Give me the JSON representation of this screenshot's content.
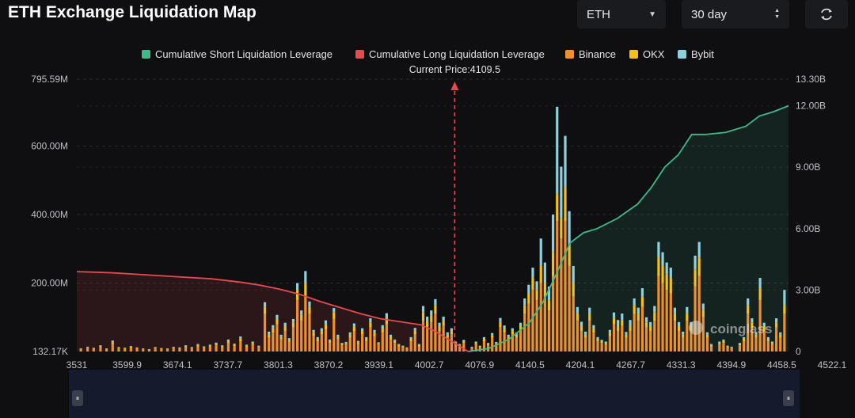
{
  "title": "ETH Exchange Liquidation Map",
  "controls": {
    "asset": "ETH",
    "range": "30 day"
  },
  "colors": {
    "short": "#3fb98a",
    "long": "#e54a4f",
    "binance": "#f0902a",
    "okx": "#f2c21b",
    "bybit": "#8fd0dc",
    "background": "#0f0f12"
  },
  "chart_data": {
    "type": "bar",
    "title": "ETH Exchange Liquidation Map",
    "current_price_label": "Current Price:4109.5",
    "current_price": 4109.5,
    "x_ticks": [
      "3531",
      "3599.9",
      "3674.1",
      "3737.7",
      "3801.3",
      "3870.2",
      "3939.1",
      "4002.7",
      "4076.9",
      "4140.5",
      "4204.1",
      "4267.7",
      "4331.3",
      "4394.9",
      "4458.5",
      "4522.1"
    ],
    "x_range": [
      3531,
      4583
    ],
    "y_left_ticks": [
      "795.59M",
      "600.00M",
      "400.00M",
      "200.00M",
      "132.17K"
    ],
    "y_left_range": [
      0,
      795.59
    ],
    "y_left_unit": "M",
    "y_right_ticks": [
      "13.30B",
      "12.00B",
      "9.00B",
      "6.00B",
      "3.00B",
      "0"
    ],
    "y_right_range": [
      0,
      13.3
    ],
    "y_right_unit": "B",
    "legend": [
      "Cumulative Short Liquidation Leverage",
      "Cumulative Long Liquidation Leverage",
      "Binance",
      "OKX",
      "Bybit"
    ],
    "legend_position": "top-center",
    "watermark": "coinglass",
    "series_bars": [
      {
        "name": "Binance",
        "color_key": "binance"
      },
      {
        "name": "OKX",
        "color_key": "okx"
      },
      {
        "name": "Bybit",
        "color_key": "bybit"
      }
    ],
    "bars": [
      {
        "x": 3537,
        "b": 6,
        "o": 2,
        "y": 1
      },
      {
        "x": 3547,
        "b": 10,
        "o": 2,
        "y": 2
      },
      {
        "x": 3556,
        "b": 8,
        "o": 2,
        "y": 1
      },
      {
        "x": 3566,
        "b": 12,
        "o": 3,
        "y": 3
      },
      {
        "x": 3575,
        "b": 6,
        "o": 2,
        "y": 1
      },
      {
        "x": 3584,
        "b": 22,
        "o": 5,
        "y": 5
      },
      {
        "x": 3593,
        "b": 9,
        "o": 2,
        "y": 2
      },
      {
        "x": 3602,
        "b": 7,
        "o": 2,
        "y": 2
      },
      {
        "x": 3611,
        "b": 11,
        "o": 3,
        "y": 2
      },
      {
        "x": 3620,
        "b": 8,
        "o": 2,
        "y": 2
      },
      {
        "x": 3629,
        "b": 6,
        "o": 2,
        "y": 1
      },
      {
        "x": 3638,
        "b": 5,
        "o": 1,
        "y": 1
      },
      {
        "x": 3647,
        "b": 9,
        "o": 2,
        "y": 2
      },
      {
        "x": 3656,
        "b": 7,
        "o": 2,
        "y": 1
      },
      {
        "x": 3665,
        "b": 6,
        "o": 2,
        "y": 1
      },
      {
        "x": 3674,
        "b": 10,
        "o": 2,
        "y": 2
      },
      {
        "x": 3683,
        "b": 8,
        "o": 2,
        "y": 2
      },
      {
        "x": 3692,
        "b": 12,
        "o": 3,
        "y": 3
      },
      {
        "x": 3701,
        "b": 9,
        "o": 2,
        "y": 2
      },
      {
        "x": 3710,
        "b": 15,
        "o": 4,
        "y": 3
      },
      {
        "x": 3719,
        "b": 10,
        "o": 3,
        "y": 2
      },
      {
        "x": 3728,
        "b": 14,
        "o": 3,
        "y": 3
      },
      {
        "x": 3737,
        "b": 18,
        "o": 4,
        "y": 4
      },
      {
        "x": 3746,
        "b": 12,
        "o": 3,
        "y": 3
      },
      {
        "x": 3755,
        "b": 24,
        "o": 6,
        "y": 5
      },
      {
        "x": 3764,
        "b": 16,
        "o": 4,
        "y": 3
      },
      {
        "x": 3773,
        "b": 30,
        "o": 8,
        "y": 6
      },
      {
        "x": 3782,
        "b": 14,
        "o": 3,
        "y": 3
      },
      {
        "x": 3791,
        "b": 20,
        "o": 5,
        "y": 4
      },
      {
        "x": 3800,
        "b": 12,
        "o": 3,
        "y": 2
      },
      {
        "x": 3809,
        "b": 110,
        "o": 20,
        "y": 14
      },
      {
        "x": 3815,
        "b": 40,
        "o": 10,
        "y": 8
      },
      {
        "x": 3821,
        "b": 55,
        "o": 12,
        "y": 10
      },
      {
        "x": 3827,
        "b": 80,
        "o": 15,
        "y": 12
      },
      {
        "x": 3833,
        "b": 35,
        "o": 8,
        "y": 6
      },
      {
        "x": 3839,
        "b": 60,
        "o": 14,
        "y": 10
      },
      {
        "x": 3845,
        "b": 28,
        "o": 6,
        "y": 5
      },
      {
        "x": 3851,
        "b": 70,
        "o": 15,
        "y": 10
      },
      {
        "x": 3857,
        "b": 150,
        "o": 30,
        "y": 20
      },
      {
        "x": 3863,
        "b": 90,
        "o": 18,
        "y": 12
      },
      {
        "x": 3869,
        "b": 160,
        "o": 40,
        "y": 35
      },
      {
        "x": 3875,
        "b": 110,
        "o": 20,
        "y": 16
      },
      {
        "x": 3881,
        "b": 45,
        "o": 10,
        "y": 8
      },
      {
        "x": 3887,
        "b": 30,
        "o": 7,
        "y": 5
      },
      {
        "x": 3893,
        "b": 50,
        "o": 10,
        "y": 8
      },
      {
        "x": 3899,
        "b": 65,
        "o": 14,
        "y": 12
      },
      {
        "x": 3905,
        "b": 25,
        "o": 6,
        "y": 4
      },
      {
        "x": 3911,
        "b": 95,
        "o": 20,
        "y": 12
      },
      {
        "x": 3917,
        "b": 35,
        "o": 8,
        "y": 6
      },
      {
        "x": 3923,
        "b": 18,
        "o": 4,
        "y": 3
      },
      {
        "x": 3929,
        "b": 20,
        "o": 5,
        "y": 3
      },
      {
        "x": 3935,
        "b": 40,
        "o": 9,
        "y": 7
      },
      {
        "x": 3941,
        "b": 60,
        "o": 12,
        "y": 10
      },
      {
        "x": 3947,
        "b": 22,
        "o": 5,
        "y": 4
      },
      {
        "x": 3953,
        "b": 50,
        "o": 10,
        "y": 8
      },
      {
        "x": 3959,
        "b": 30,
        "o": 7,
        "y": 5
      },
      {
        "x": 3965,
        "b": 70,
        "o": 15,
        "y": 12
      },
      {
        "x": 3971,
        "b": 45,
        "o": 10,
        "y": 8
      },
      {
        "x": 3977,
        "b": 20,
        "o": 4,
        "y": 3
      },
      {
        "x": 3983,
        "b": 55,
        "o": 12,
        "y": 10
      },
      {
        "x": 3989,
        "b": 80,
        "o": 18,
        "y": 14
      },
      {
        "x": 3995,
        "b": 35,
        "o": 8,
        "y": 6
      },
      {
        "x": 4001,
        "b": 25,
        "o": 6,
        "y": 4
      },
      {
        "x": 4007,
        "b": 15,
        "o": 4,
        "y": 3
      },
      {
        "x": 4013,
        "b": 12,
        "o": 3,
        "y": 2
      },
      {
        "x": 4019,
        "b": 8,
        "o": 2,
        "y": 2
      },
      {
        "x": 4025,
        "b": 30,
        "o": 7,
        "y": 5
      },
      {
        "x": 4031,
        "b": 50,
        "o": 11,
        "y": 8
      },
      {
        "x": 4037,
        "b": 15,
        "o": 4,
        "y": 3
      },
      {
        "x": 4043,
        "b": 90,
        "o": 25,
        "y": 18
      },
      {
        "x": 4049,
        "b": 70,
        "o": 18,
        "y": 14
      },
      {
        "x": 4055,
        "b": 85,
        "o": 20,
        "y": 15
      },
      {
        "x": 4061,
        "b": 110,
        "o": 25,
        "y": 18
      },
      {
        "x": 4067,
        "b": 60,
        "o": 14,
        "y": 10
      },
      {
        "x": 4073,
        "b": 75,
        "o": 15,
        "y": 12
      },
      {
        "x": 4079,
        "b": 40,
        "o": 9,
        "y": 7
      },
      {
        "x": 4085,
        "b": 50,
        "o": 10,
        "y": 8
      },
      {
        "x": 4091,
        "b": 20,
        "o": 5,
        "y": 4
      },
      {
        "x": 4097,
        "b": 15,
        "o": 4,
        "y": 3
      },
      {
        "x": 4103,
        "b": 25,
        "o": 5,
        "y": 4
      },
      {
        "x": 4115,
        "b": 10,
        "o": 2,
        "y": 2
      },
      {
        "x": 4121,
        "b": 20,
        "o": 5,
        "y": 4
      },
      {
        "x": 4127,
        "b": 12,
        "o": 3,
        "y": 2
      },
      {
        "x": 4133,
        "b": 30,
        "o": 7,
        "y": 5
      },
      {
        "x": 4139,
        "b": 18,
        "o": 4,
        "y": 3
      },
      {
        "x": 4145,
        "b": 40,
        "o": 8,
        "y": 6
      },
      {
        "x": 4151,
        "b": 20,
        "o": 5,
        "y": 3
      },
      {
        "x": 4157,
        "b": 70,
        "o": 16,
        "y": 12
      },
      {
        "x": 4163,
        "b": 55,
        "o": 12,
        "y": 9
      },
      {
        "x": 4169,
        "b": 35,
        "o": 8,
        "y": 6
      },
      {
        "x": 4175,
        "b": 50,
        "o": 10,
        "y": 8
      },
      {
        "x": 4181,
        "b": 40,
        "o": 9,
        "y": 7
      },
      {
        "x": 4187,
        "b": 60,
        "o": 14,
        "y": 10
      },
      {
        "x": 4193,
        "b": 110,
        "o": 25,
        "y": 20
      },
      {
        "x": 4199,
        "b": 140,
        "o": 30,
        "y": 25
      },
      {
        "x": 4205,
        "b": 180,
        "o": 35,
        "y": 30
      },
      {
        "x": 4211,
        "b": 150,
        "o": 30,
        "y": 25
      },
      {
        "x": 4217,
        "b": 200,
        "o": 50,
        "y": 80
      },
      {
        "x": 4223,
        "b": 160,
        "o": 40,
        "y": 60
      },
      {
        "x": 4229,
        "b": 120,
        "o": 30,
        "y": 40
      },
      {
        "x": 4235,
        "b": 220,
        "o": 70,
        "y": 110
      },
      {
        "x": 4241,
        "b": 380,
        "o": 80,
        "y": 255
      },
      {
        "x": 4247,
        "b": 330,
        "o": 60,
        "y": 150
      },
      {
        "x": 4253,
        "b": 380,
        "o": 100,
        "y": 150
      },
      {
        "x": 4259,
        "b": 250,
        "o": 60,
        "y": 100
      },
      {
        "x": 4265,
        "b": 160,
        "o": 40,
        "y": 50
      },
      {
        "x": 4271,
        "b": 90,
        "o": 22,
        "y": 18
      },
      {
        "x": 4277,
        "b": 60,
        "o": 15,
        "y": 12
      },
      {
        "x": 4283,
        "b": 40,
        "o": 10,
        "y": 8
      },
      {
        "x": 4289,
        "b": 90,
        "o": 20,
        "y": 18
      },
      {
        "x": 4295,
        "b": 55,
        "o": 12,
        "y": 10
      },
      {
        "x": 4301,
        "b": 30,
        "o": 7,
        "y": 5
      },
      {
        "x": 4307,
        "b": 25,
        "o": 5,
        "y": 4
      },
      {
        "x": 4313,
        "b": 20,
        "o": 5,
        "y": 4
      },
      {
        "x": 4319,
        "b": 45,
        "o": 10,
        "y": 8
      },
      {
        "x": 4325,
        "b": 80,
        "o": 18,
        "y": 16
      },
      {
        "x": 4331,
        "b": 60,
        "o": 14,
        "y": 18
      },
      {
        "x": 4337,
        "b": 75,
        "o": 16,
        "y": 20
      },
      {
        "x": 4343,
        "b": 40,
        "o": 9,
        "y": 8
      },
      {
        "x": 4349,
        "b": 60,
        "o": 14,
        "y": 18
      },
      {
        "x": 4355,
        "b": 110,
        "o": 25,
        "y": 20
      },
      {
        "x": 4361,
        "b": 90,
        "o": 20,
        "y": 18
      },
      {
        "x": 4367,
        "b": 130,
        "o": 30,
        "y": 25
      },
      {
        "x": 4373,
        "b": 70,
        "o": 15,
        "y": 15
      },
      {
        "x": 4379,
        "b": 60,
        "o": 14,
        "y": 12
      },
      {
        "x": 4385,
        "b": 90,
        "o": 25,
        "y": 18
      },
      {
        "x": 4391,
        "b": 220,
        "o": 55,
        "y": 45
      },
      {
        "x": 4397,
        "b": 200,
        "o": 50,
        "y": 40
      },
      {
        "x": 4403,
        "b": 180,
        "o": 45,
        "y": 35
      },
      {
        "x": 4409,
        "b": 170,
        "o": 45,
        "y": 30
      },
      {
        "x": 4415,
        "b": 90,
        "o": 20,
        "y": 18
      },
      {
        "x": 4421,
        "b": 60,
        "o": 14,
        "y": 12
      },
      {
        "x": 4427,
        "b": 40,
        "o": 10,
        "y": 8
      },
      {
        "x": 4433,
        "b": 90,
        "o": 22,
        "y": 18
      },
      {
        "x": 4439,
        "b": 60,
        "o": 14,
        "y": 12
      },
      {
        "x": 4445,
        "b": 190,
        "o": 50,
        "y": 40
      },
      {
        "x": 4451,
        "b": 220,
        "o": 55,
        "y": 45
      },
      {
        "x": 4457,
        "b": 100,
        "o": 22,
        "y": 18
      },
      {
        "x": 4463,
        "b": 40,
        "o": 9,
        "y": 7
      },
      {
        "x": 4469,
        "b": 15,
        "o": 4,
        "y": 3
      },
      {
        "x": 4481,
        "b": 20,
        "o": 5,
        "y": 4
      },
      {
        "x": 4487,
        "b": 25,
        "o": 6,
        "y": 4
      },
      {
        "x": 4493,
        "b": 12,
        "o": 3,
        "y": 2
      },
      {
        "x": 4499,
        "b": 10,
        "o": 2,
        "y": 2
      },
      {
        "x": 4511,
        "b": 18,
        "o": 4,
        "y": 3
      },
      {
        "x": 4517,
        "b": 30,
        "o": 7,
        "y": 5
      },
      {
        "x": 4523,
        "b": 110,
        "o": 25,
        "y": 20
      },
      {
        "x": 4529,
        "b": 70,
        "o": 15,
        "y": 12
      },
      {
        "x": 4535,
        "b": 40,
        "o": 9,
        "y": 7
      },
      {
        "x": 4541,
        "b": 150,
        "o": 35,
        "y": 30
      },
      {
        "x": 4547,
        "b": 60,
        "o": 14,
        "y": 10
      },
      {
        "x": 4553,
        "b": 30,
        "o": 7,
        "y": 5
      },
      {
        "x": 4559,
        "b": 20,
        "o": 5,
        "y": 4
      },
      {
        "x": 4565,
        "b": 70,
        "o": 15,
        "y": 12
      },
      {
        "x": 4571,
        "b": 40,
        "o": 9,
        "y": 7
      },
      {
        "x": 4577,
        "b": 110,
        "o": 25,
        "y": 45
      }
    ],
    "long_cumulative": {
      "name": "Cumulative Long Liquidation Leverage",
      "x": [
        3531,
        3580,
        3630,
        3680,
        3730,
        3770,
        3800,
        3830,
        3860,
        3890,
        3920,
        3950,
        3980,
        4010,
        4040,
        4060,
        4080,
        4095,
        4109.5
      ],
      "y": [
        3.9,
        3.85,
        3.75,
        3.65,
        3.55,
        3.4,
        3.25,
        3.05,
        2.8,
        2.45,
        2.15,
        1.85,
        1.6,
        1.45,
        1.3,
        1.0,
        0.6,
        0.3,
        0
      ]
    },
    "short_cumulative": {
      "name": "Cumulative Short Liquidation Leverage",
      "x": [
        4109.5,
        4140,
        4170,
        4200,
        4220,
        4240,
        4260,
        4280,
        4300,
        4330,
        4360,
        4380,
        4400,
        4420,
        4440,
        4460,
        4490,
        4520,
        4540,
        4560,
        4583
      ],
      "y": [
        0,
        0.15,
        0.6,
        1.4,
        2.4,
        3.8,
        5.3,
        5.8,
        6.0,
        6.5,
        7.2,
        8.0,
        9.0,
        9.6,
        10.6,
        10.6,
        10.7,
        11.0,
        11.5,
        11.7,
        12.0
      ]
    }
  },
  "scrollbar": {
    "left_handle": "⏸",
    "right_handle": "⏸"
  }
}
